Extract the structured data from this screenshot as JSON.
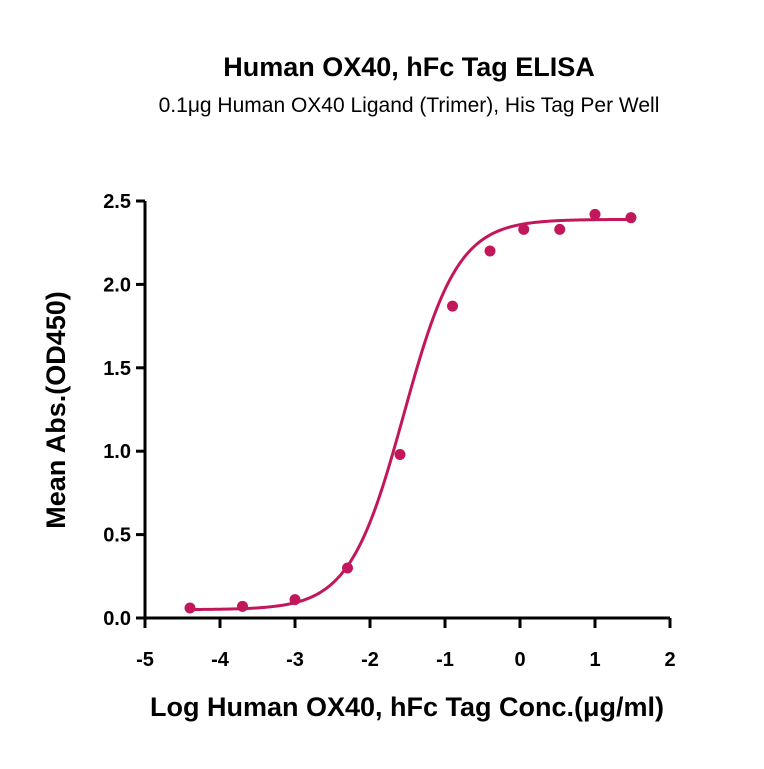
{
  "chart_data": {
    "type": "scatter",
    "title": "Human OX40, hFc Tag ELISA",
    "subtitle": "0.1μg Human OX40 Ligand (Trimer), His Tag Per Well",
    "xlabel": "Log Human OX40, hFc Tag Conc.(μg/ml)",
    "ylabel": "Mean Abs.(OD450)",
    "xlim": [
      -5,
      2
    ],
    "ylim": [
      0,
      2.5
    ],
    "x_ticks": [
      -5,
      -4,
      -3,
      -2,
      -1,
      0,
      1,
      2
    ],
    "x_tick_labels": [
      "-5",
      "-4",
      "-3",
      "-2",
      "-1",
      "0",
      "1",
      "2"
    ],
    "y_ticks": [
      0,
      0.5,
      1.0,
      1.5,
      2.0,
      2.5
    ],
    "y_tick_labels": [
      "0.0",
      "0.5",
      "1.0",
      "1.5",
      "2.0",
      "2.5"
    ],
    "grid": false,
    "legend": "none",
    "series": [
      {
        "points": {
          "x": [
            -4.4,
            -3.7,
            -3.0,
            -2.3,
            -1.6,
            -0.9,
            -0.4,
            0.05,
            0.53,
            1.0,
            1.48
          ],
          "y": [
            0.06,
            0.07,
            0.11,
            0.3,
            0.98,
            1.87,
            2.2,
            2.33,
            2.33,
            2.42,
            2.4
          ]
        },
        "fit_curve": {
          "model": "4PL",
          "bottom": 0.05,
          "top": 2.39,
          "log_ec50": -1.55,
          "hill_slope": 1.2,
          "x_range": [
            -4.4,
            1.48
          ]
        },
        "color": "#c2185b"
      }
    ]
  }
}
